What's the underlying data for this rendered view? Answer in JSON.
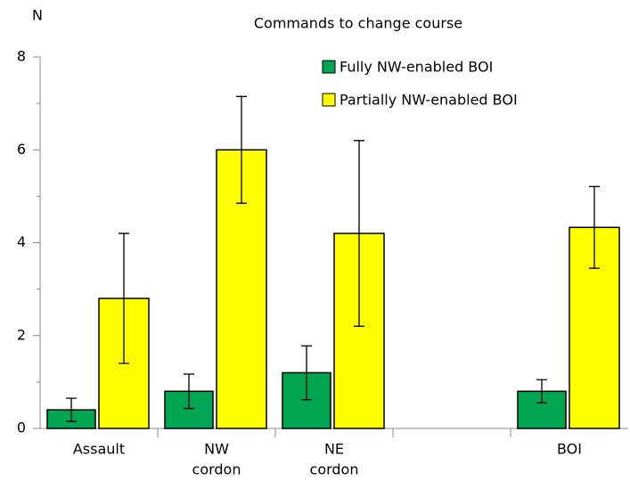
{
  "chart_data": {
    "type": "bar",
    "title": "Commands to change course",
    "y_label": "N",
    "categories": [
      [
        "Assault"
      ],
      [
        "NW",
        "cordon"
      ],
      [
        "NE",
        "cordon"
      ],
      null,
      [
        "BOI"
      ]
    ],
    "series": [
      {
        "name": "Fully NW-enabled BOI",
        "color": "#00a651",
        "values": [
          0.4,
          0.8,
          1.2,
          null,
          0.8
        ],
        "errors": [
          0.25,
          0.37,
          0.58,
          null,
          0.25
        ]
      },
      {
        "name": "Partially NW-enabled BOI",
        "color": "#ffff00",
        "values": [
          2.8,
          6.0,
          4.2,
          null,
          4.33
        ],
        "errors": [
          1.4,
          1.15,
          2.0,
          null,
          0.88
        ]
      }
    ],
    "ylim": [
      0,
      8
    ],
    "yticks": [
      0,
      2,
      4,
      6,
      8
    ],
    "minor_yticks": [
      1,
      3,
      5,
      7
    ],
    "legend": "top-right"
  }
}
